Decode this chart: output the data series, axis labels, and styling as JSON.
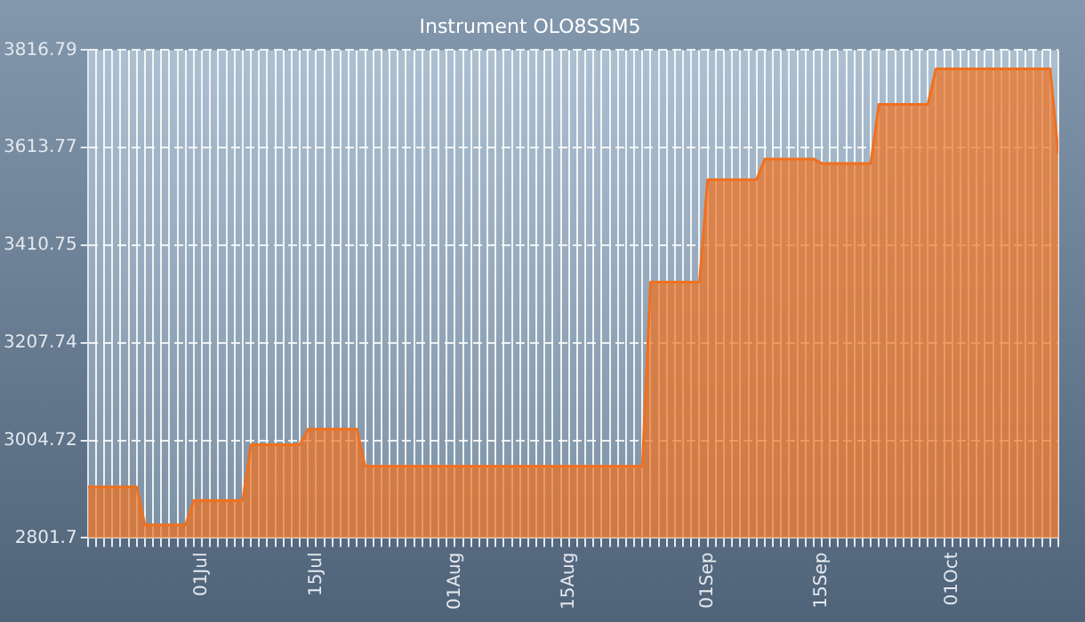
{
  "chart_data": {
    "type": "area",
    "title": "Instrument OLO8SSM5",
    "x": [
      "--06-17",
      "--06-23",
      "--06-24",
      "--06-29",
      "--06-30",
      "--07-06",
      "--07-07",
      "--07-13",
      "--07-14",
      "--07-20",
      "--07-21",
      "--08-24",
      "--08-25",
      "--08-31",
      "--09-01",
      "--09-07",
      "--09-08",
      "--09-14",
      "--09-15",
      "--09-21",
      "--09-22",
      "--09-28",
      "--09-29",
      "--10-13",
      "--10-14"
    ],
    "series": [
      {
        "color": "#f0701e",
        "values": [
          2908,
          2908,
          2829,
          2829,
          2880,
          2880,
          2996,
          2996,
          3028,
          3028,
          2951,
          2951,
          3334,
          3334,
          3547,
          3547,
          3590,
          3590,
          3581,
          3581,
          3704,
          3704,
          3778,
          3778,
          3601
        ]
      }
    ],
    "ylim": [
      2801.7,
      3816.79
    ],
    "yticks": [
      2801.7,
      3004.72,
      3207.74,
      3410.75,
      3613.77,
      3816.79
    ],
    "xlim": [
      "--06-17",
      "--10-14"
    ],
    "xticks": [
      {
        "value": "--06-17",
        "label": null
      },
      {
        "value": "--06-18",
        "label": null
      },
      {
        "value": "--06-19",
        "label": null
      },
      {
        "value": "--06-20",
        "label": null
      },
      {
        "value": "--06-21",
        "label": null
      },
      {
        "value": "--06-22",
        "label": null
      },
      {
        "value": "--06-23",
        "label": null
      },
      {
        "value": "--06-24",
        "label": null
      },
      {
        "value": "--06-25",
        "label": null
      },
      {
        "value": "--06-26",
        "label": null
      },
      {
        "value": "--06-27",
        "label": null
      },
      {
        "value": "--06-28",
        "label": null
      },
      {
        "value": "--06-29",
        "label": null
      },
      {
        "value": "--06-30",
        "label": null
      },
      {
        "value": "--07-01",
        "label": "01Jul"
      },
      {
        "value": "--07-02",
        "label": null
      },
      {
        "value": "--07-03",
        "label": null
      },
      {
        "value": "--07-04",
        "label": null
      },
      {
        "value": "--07-05",
        "label": null
      },
      {
        "value": "--07-06",
        "label": null
      },
      {
        "value": "--07-07",
        "label": null
      },
      {
        "value": "--07-08",
        "label": null
      },
      {
        "value": "--07-09",
        "label": null
      },
      {
        "value": "--07-10",
        "label": null
      },
      {
        "value": "--07-11",
        "label": null
      },
      {
        "value": "--07-12",
        "label": null
      },
      {
        "value": "--07-13",
        "label": null
      },
      {
        "value": "--07-14",
        "label": null
      },
      {
        "value": "--07-15",
        "label": "15Jul"
      },
      {
        "value": "--07-16",
        "label": null
      },
      {
        "value": "--07-17",
        "label": null
      },
      {
        "value": "--07-18",
        "label": null
      },
      {
        "value": "--07-19",
        "label": null
      },
      {
        "value": "--07-20",
        "label": null
      },
      {
        "value": "--07-21",
        "label": null
      },
      {
        "value": "--07-22",
        "label": null
      },
      {
        "value": "--07-23",
        "label": null
      },
      {
        "value": "--07-24",
        "label": null
      },
      {
        "value": "--07-25",
        "label": null
      },
      {
        "value": "--07-26",
        "label": null
      },
      {
        "value": "--07-27",
        "label": null
      },
      {
        "value": "--07-28",
        "label": null
      },
      {
        "value": "--07-29",
        "label": null
      },
      {
        "value": "--07-30",
        "label": null
      },
      {
        "value": "--07-31",
        "label": null
      },
      {
        "value": "--08-01",
        "label": "01Aug"
      },
      {
        "value": "--08-02",
        "label": null
      },
      {
        "value": "--08-03",
        "label": null
      },
      {
        "value": "--08-04",
        "label": null
      },
      {
        "value": "--08-05",
        "label": null
      },
      {
        "value": "--08-06",
        "label": null
      },
      {
        "value": "--08-07",
        "label": null
      },
      {
        "value": "--08-08",
        "label": null
      },
      {
        "value": "--08-09",
        "label": null
      },
      {
        "value": "--08-10",
        "label": null
      },
      {
        "value": "--08-11",
        "label": null
      },
      {
        "value": "--08-12",
        "label": null
      },
      {
        "value": "--08-13",
        "label": null
      },
      {
        "value": "--08-14",
        "label": null
      },
      {
        "value": "--08-15",
        "label": "15Aug"
      },
      {
        "value": "--08-16",
        "label": null
      },
      {
        "value": "--08-17",
        "label": null
      },
      {
        "value": "--08-18",
        "label": null
      },
      {
        "value": "--08-19",
        "label": null
      },
      {
        "value": "--08-20",
        "label": null
      },
      {
        "value": "--08-21",
        "label": null
      },
      {
        "value": "--08-22",
        "label": null
      },
      {
        "value": "--08-23",
        "label": null
      },
      {
        "value": "--08-24",
        "label": null
      },
      {
        "value": "--08-25",
        "label": null
      },
      {
        "value": "--08-26",
        "label": null
      },
      {
        "value": "--08-27",
        "label": null
      },
      {
        "value": "--08-28",
        "label": null
      },
      {
        "value": "--08-29",
        "label": null
      },
      {
        "value": "--08-30",
        "label": null
      },
      {
        "value": "--08-31",
        "label": null
      },
      {
        "value": "--09-01",
        "label": "01Sep"
      },
      {
        "value": "--09-02",
        "label": null
      },
      {
        "value": "--09-03",
        "label": null
      },
      {
        "value": "--09-04",
        "label": null
      },
      {
        "value": "--09-05",
        "label": null
      },
      {
        "value": "--09-06",
        "label": null
      },
      {
        "value": "--09-07",
        "label": null
      },
      {
        "value": "--09-08",
        "label": null
      },
      {
        "value": "--09-09",
        "label": null
      },
      {
        "value": "--09-10",
        "label": null
      },
      {
        "value": "--09-11",
        "label": null
      },
      {
        "value": "--09-12",
        "label": null
      },
      {
        "value": "--09-13",
        "label": null
      },
      {
        "value": "--09-14",
        "label": null
      },
      {
        "value": "--09-15",
        "label": "15Sep"
      },
      {
        "value": "--09-16",
        "label": null
      },
      {
        "value": "--09-17",
        "label": null
      },
      {
        "value": "--09-18",
        "label": null
      },
      {
        "value": "--09-19",
        "label": null
      },
      {
        "value": "--09-20",
        "label": null
      },
      {
        "value": "--09-21",
        "label": null
      },
      {
        "value": "--09-22",
        "label": null
      },
      {
        "value": "--09-23",
        "label": null
      },
      {
        "value": "--09-24",
        "label": null
      },
      {
        "value": "--09-25",
        "label": null
      },
      {
        "value": "--09-26",
        "label": null
      },
      {
        "value": "--09-27",
        "label": null
      },
      {
        "value": "--09-28",
        "label": null
      },
      {
        "value": "--09-29",
        "label": null
      },
      {
        "value": "--09-30",
        "label": null
      },
      {
        "value": "--10-01",
        "label": "01Oct"
      },
      {
        "value": "--10-02",
        "label": null
      },
      {
        "value": "--10-03",
        "label": null
      },
      {
        "value": "--10-04",
        "label": null
      },
      {
        "value": "--10-05",
        "label": null
      },
      {
        "value": "--10-06",
        "label": null
      },
      {
        "value": "--10-07",
        "label": null
      },
      {
        "value": "--10-08",
        "label": null
      },
      {
        "value": "--10-09",
        "label": null
      },
      {
        "value": "--10-10",
        "label": null
      },
      {
        "value": "--10-11",
        "label": null
      },
      {
        "value": "--10-12",
        "label": null
      },
      {
        "value": "--10-13",
        "label": null
      },
      {
        "value": "--10-14",
        "label": null
      }
    ],
    "grid": true,
    "line_style": "solid"
  }
}
